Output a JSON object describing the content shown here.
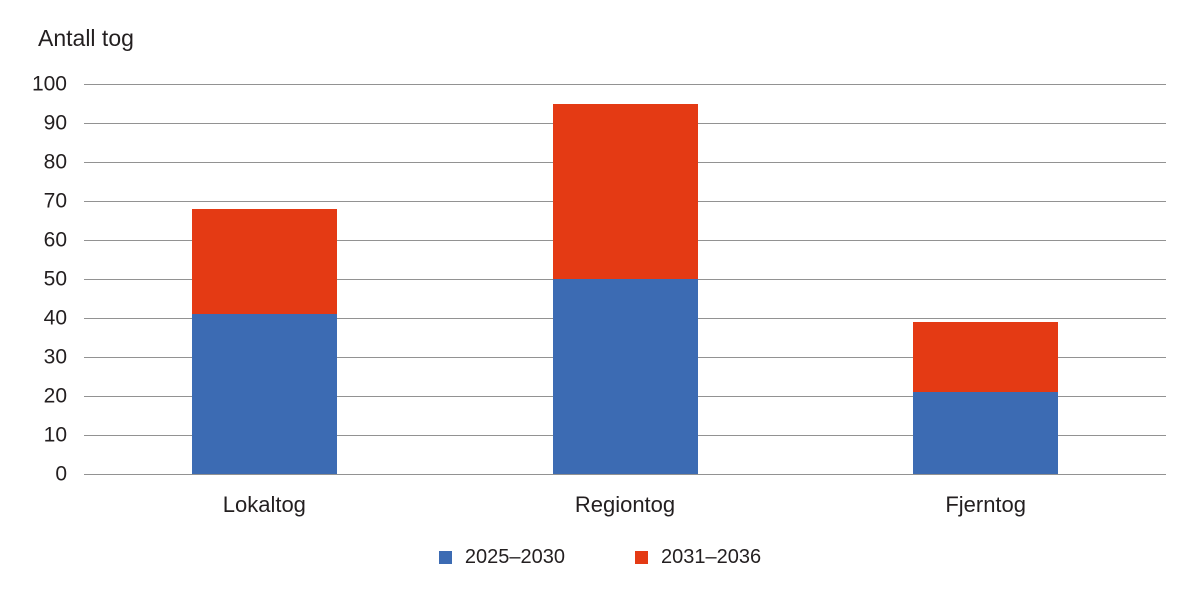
{
  "chart_data": {
    "type": "bar",
    "stacked": true,
    "title": "Antall tog",
    "ylabel": "Antall tog",
    "xlabel": "",
    "categories": [
      "Lokaltog",
      "Regiontog",
      "Fjerntog"
    ],
    "series": [
      {
        "name": "2025–2030",
        "color": "#3C6BB3",
        "values": [
          41,
          50,
          21
        ]
      },
      {
        "name": "2031–2036",
        "color": "#E43A14",
        "values": [
          27,
          45,
          18
        ]
      }
    ],
    "totals": [
      68,
      95,
      39
    ],
    "ylim": [
      0,
      100
    ],
    "yticks": [
      0,
      10,
      20,
      30,
      40,
      50,
      60,
      70,
      80,
      90,
      100
    ],
    "grid": "horizontal",
    "gridline_color": "#929292",
    "text_color": "#231F20",
    "legend_position": "bottom-center"
  }
}
